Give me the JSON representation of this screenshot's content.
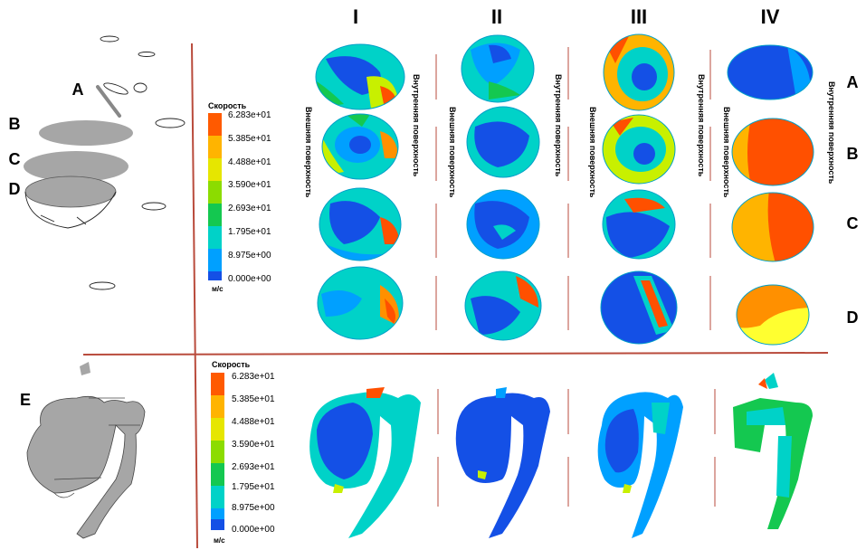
{
  "columns": [
    "I",
    "II",
    "III",
    "IV"
  ],
  "section_letters": [
    "A",
    "B",
    "C",
    "D"
  ],
  "panel_letter_e": "E",
  "side_labels": {
    "outer": "Внешняя поверхность",
    "inner": "Внутренняя поверхность"
  },
  "legend": {
    "title": "Скорость",
    "unit": "м/с",
    "ticks": [
      "6.283e+01",
      "5.385e+01",
      "4.488e+01",
      "3.590e+01",
      "2.693e+01",
      "1.795e+01",
      "8.975e+00",
      "0.000e+00"
    ],
    "colors": [
      "#ff5a00",
      "#ffb400",
      "#e6e600",
      "#8cdc00",
      "#14c850",
      "#00d2c8",
      "#00a0ff",
      "#1450e6"
    ]
  },
  "palette": {
    "divider": "#b94b3c",
    "vessel_gray": "#a6a6a6",
    "low": "#1450e6",
    "lowmid": "#00c8ff",
    "mid": "#32e6b4",
    "midhigh": "#c8f000",
    "high": "#ffb400",
    "max": "#ff5000"
  }
}
